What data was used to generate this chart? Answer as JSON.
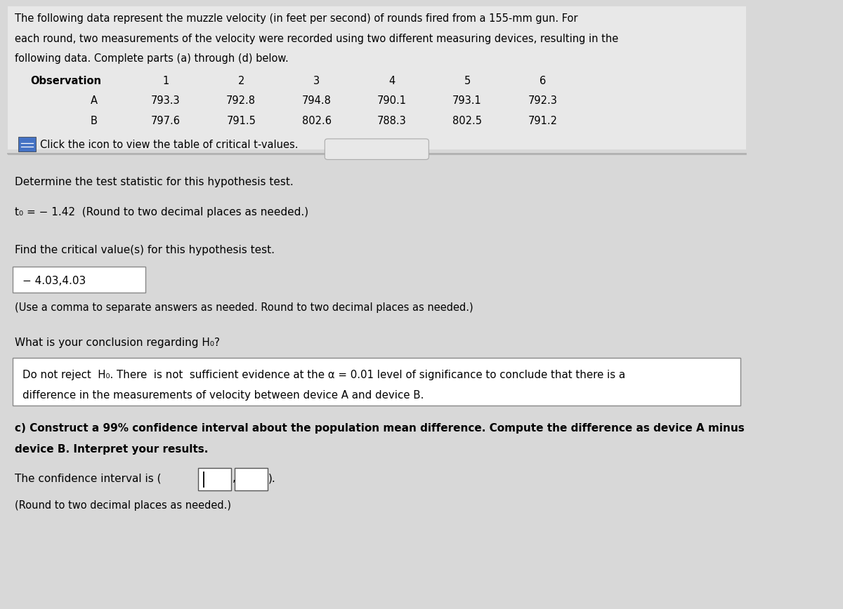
{
  "bg_color": "#d8d8d8",
  "content_bg": "#e8e8e8",
  "intro_text": "The following data represent the muzzle velocity (in feet per second) of rounds fired from a 155-mm gun. For\neach round, two measurements of the velocity were recorded using two different measuring devices, resulting in the\nfollowing data. Complete parts (a) through (d) below.",
  "table_header": [
    "Observation",
    "1",
    "2",
    "3",
    "4",
    "5",
    "6"
  ],
  "row_A_label": "A",
  "row_B_label": "B",
  "row_A_values": [
    "793.3",
    "792.8",
    "794.8",
    "790.1",
    "793.1",
    "792.3"
  ],
  "row_B_values": [
    "797.6",
    "791.5",
    "802.6",
    "788.3",
    "802.5",
    "791.2"
  ],
  "click_icon_text": "Click the icon to view the table of critical t-values.",
  "section1_title": "Determine the test statistic for this hypothesis test.",
  "t0_line": "t₀ = − 1.42  (Round to two decimal places as needed.)",
  "section2_title": "Find the critical value(s) for this hypothesis test.",
  "critical_value_box": "− 4.03,4.03",
  "critical_value_note": "(Use a comma to separate answers as needed. Round to two decimal places as needed.)",
  "section3_title": "What is your conclusion regarding H₀?",
  "conclusion_line1": "Do not reject  H₀. There  is not  sufficient evidence at the α = 0.01 level of significance to conclude that there is a",
  "conclusion_line2": "difference in the measurements of velocity between device A and device B.",
  "section4_line1": "c) Construct a 99% confidence interval about the population mean difference. Compute the difference as device A minus",
  "section4_line2": "device B. Interpret your results.",
  "confidence_interval_prefix": "The confidence interval is (",
  "confidence_interval_suffix": ").",
  "confidence_interval_note": "(Round to two decimal places as needed.)",
  "dots_button": "..."
}
